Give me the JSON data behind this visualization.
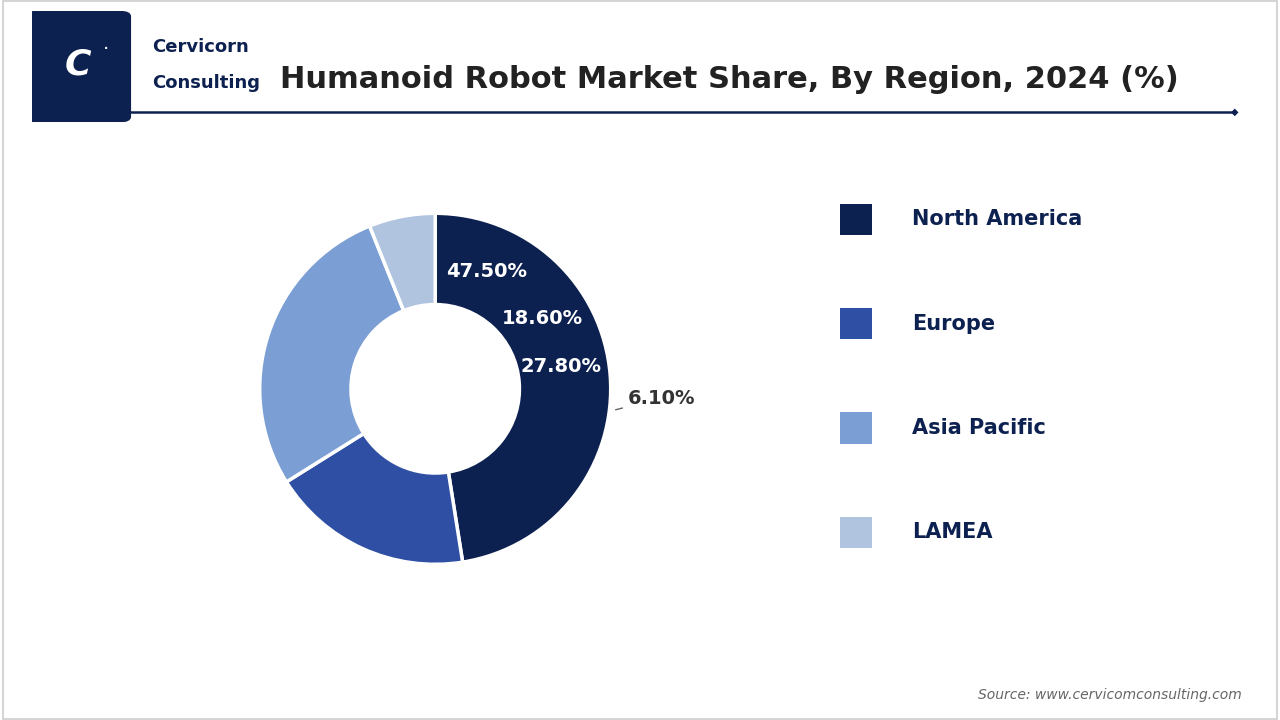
{
  "title": "Humanoid Robot Market Share, By Region, 2024 (%)",
  "segments": [
    {
      "label": "North America",
      "value": 47.5,
      "color": "#0d2150"
    },
    {
      "label": "Europe",
      "value": 18.6,
      "color": "#2e4fa3"
    },
    {
      "label": "Asia Pacific",
      "value": 27.8,
      "color": "#7b9fd4"
    },
    {
      "label": "LAMEA",
      "value": 6.1,
      "color": "#b0c4e0"
    }
  ],
  "pct_labels": [
    "47.50%",
    "18.60%",
    "27.80%",
    "6.10%"
  ],
  "background_color": "#ffffff",
  "title_fontsize": 22,
  "legend_fontsize": 15,
  "label_fontsize": 14,
  "source_text": "Source: www.cervicomconsulting.com",
  "line_color": "#0d2150",
  "legend_text_color": "#0d2150"
}
